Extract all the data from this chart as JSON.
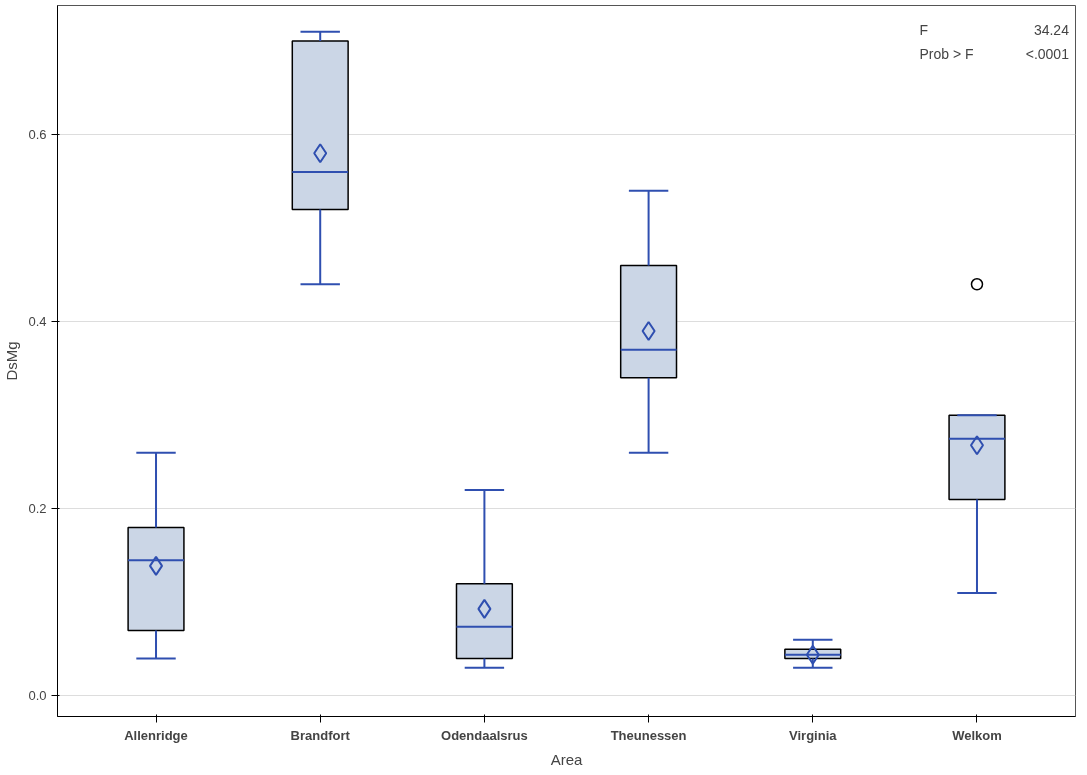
{
  "chart_data": {
    "type": "box",
    "xlabel": "Area",
    "ylabel": "DsMg",
    "categories": [
      "Allenridge",
      "Brandfort",
      "Odendaalsrus",
      "Theunessen",
      "Virginia",
      "Welkom"
    ],
    "boxes": [
      {
        "low": 0.04,
        "q1": 0.07,
        "median": 0.145,
        "q3": 0.18,
        "high": 0.26,
        "mean": 0.139
      },
      {
        "low": 0.44,
        "q1": 0.52,
        "median": 0.56,
        "q3": 0.7,
        "high": 0.71,
        "mean": 0.58
      },
      {
        "low": 0.03,
        "q1": 0.04,
        "median": 0.074,
        "q3": 0.12,
        "high": 0.22,
        "mean": 0.093
      },
      {
        "low": 0.26,
        "q1": 0.34,
        "median": 0.37,
        "q3": 0.46,
        "high": 0.54,
        "mean": 0.39
      },
      {
        "low": 0.03,
        "q1": 0.04,
        "median": 0.044,
        "q3": 0.05,
        "high": 0.06,
        "mean": 0.044
      },
      {
        "low": 0.11,
        "q1": 0.21,
        "median": 0.275,
        "q3": 0.3,
        "high": 0.3,
        "mean": 0.268,
        "outliers": [
          0.44
        ]
      }
    ],
    "color": "#cbd6e6",
    "ylim": [
      -0.022,
      0.738
    ],
    "yticks": [
      {
        "value": 0,
        "label": "0.0"
      },
      0.2,
      0.4,
      0.6
    ],
    "grid": "y",
    "annotations": [
      "F",
      "34.24",
      "Prob > F",
      "<.0001"
    ]
  }
}
